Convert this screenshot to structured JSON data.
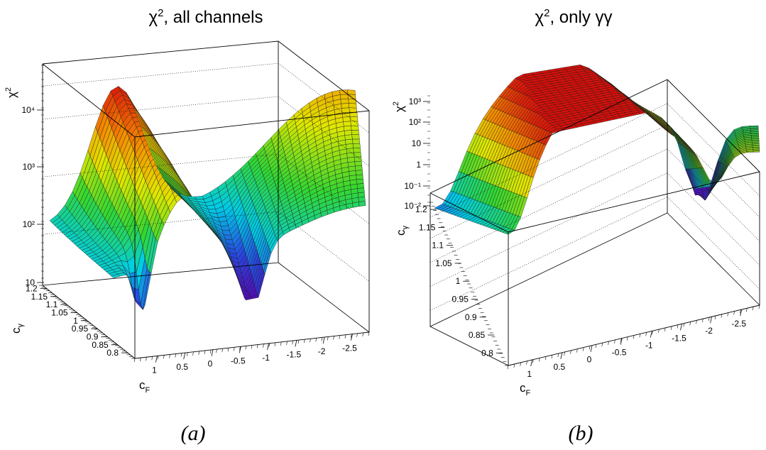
{
  "chart_data": [
    {
      "type": "surface3d",
      "title": "χ², all channels",
      "caption": "(a)",
      "xlabel": "c_F",
      "ylabel": "c_γ (˜c)",
      "zlabel": "χ²",
      "x_ticks": [
        "1",
        "0.5",
        "0",
        "-0.5",
        "-1",
        "-1.5",
        "-2",
        "-2.5"
      ],
      "y_ticks": [
        "1.2",
        "1.15",
        "1.1",
        "1.05",
        "1",
        "0.95",
        "0.9",
        "0.85",
        "0.8"
      ],
      "z_ticks": [
        "10",
        "10²",
        "10³",
        "10⁴"
      ],
      "z_scale": "log",
      "xlim": [
        1.3,
        -2.6
      ],
      "ylim": [
        0.8,
        1.2
      ],
      "zlim": [
        10,
        50000
      ],
      "palette": "rainbow",
      "mesh": "black"
    },
    {
      "type": "surface3d",
      "title": "χ², only γγ",
      "caption": "(b)",
      "xlabel": "c_F",
      "ylabel": "c_γ (˜c)",
      "zlabel": "χ²",
      "x_ticks": [
        "1",
        "0.5",
        "0",
        "-0.5",
        "-1",
        "-1.5",
        "-2",
        "-2.5"
      ],
      "y_ticks": [
        "1.2",
        "1.15",
        "1.1",
        "1.05",
        "1",
        "0.95",
        "0.9",
        "0.85",
        "0.8"
      ],
      "z_ticks": [
        "10⁻²",
        "10⁻¹",
        "1",
        "10",
        "10²",
        "10³"
      ],
      "z_scale": "log",
      "xlim": [
        1.3,
        -2.6
      ],
      "ylim": [
        0.8,
        1.2
      ],
      "zlim": [
        0.01,
        2000
      ],
      "palette": "rainbow",
      "mesh": "black"
    }
  ],
  "text": {
    "title_a_main": "χ",
    "title_a_sup": "2",
    "title_a_rest": ", all channels",
    "title_b_main": "χ",
    "title_b_sup": "2",
    "title_b_rest": ", only γγ",
    "caption_a": "(a)",
    "caption_b": "(b)",
    "zaxis_a": "χ",
    "zaxis_a_sup": "2",
    "zaxis_b": "χ",
    "zaxis_b_sup": "2",
    "xaxis_main": "c",
    "xaxis_sub": "F",
    "yaxis_main": "c",
    "yaxis_sub": "γ"
  }
}
